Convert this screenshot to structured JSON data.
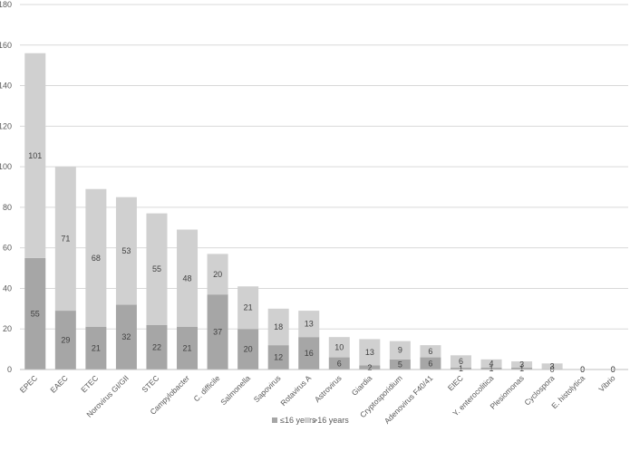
{
  "chart_data": {
    "type": "bar",
    "stacked": true,
    "categories": [
      "EPEC",
      "EAEC",
      "ETEC",
      "Norovirus GI/GII",
      "STEC",
      "Campylobacter",
      "C. difficile",
      "Salmonella",
      "Sapovirus",
      "Rotavirus A",
      "Astrovirus",
      "Giardia",
      "Cryptosporidium",
      "Adenovirus F40/41",
      "EIEC",
      "Y. enterocolitica",
      "Plesiomonas",
      "Cyclospora",
      "E. histolytica",
      "Vibrio"
    ],
    "series": [
      {
        "name": "≤16 years",
        "color": "#a6a6a6",
        "values": [
          55,
          29,
          21,
          32,
          22,
          21,
          37,
          20,
          12,
          16,
          6,
          2,
          5,
          6,
          1,
          1,
          1,
          0,
          0,
          0
        ]
      },
      {
        "name": ">16 years",
        "color": "#d0d0d0",
        "values": [
          101,
          71,
          68,
          53,
          55,
          48,
          20,
          21,
          18,
          13,
          10,
          13,
          9,
          6,
          6,
          4,
          3,
          3,
          0,
          0
        ]
      }
    ],
    "ylim": [
      0,
      180
    ],
    "yticks": [
      "0",
      "20",
      "40",
      "60",
      "80",
      "100",
      "120",
      "140",
      "160",
      "180"
    ],
    "grid": true,
    "legend_position": "bottom"
  }
}
